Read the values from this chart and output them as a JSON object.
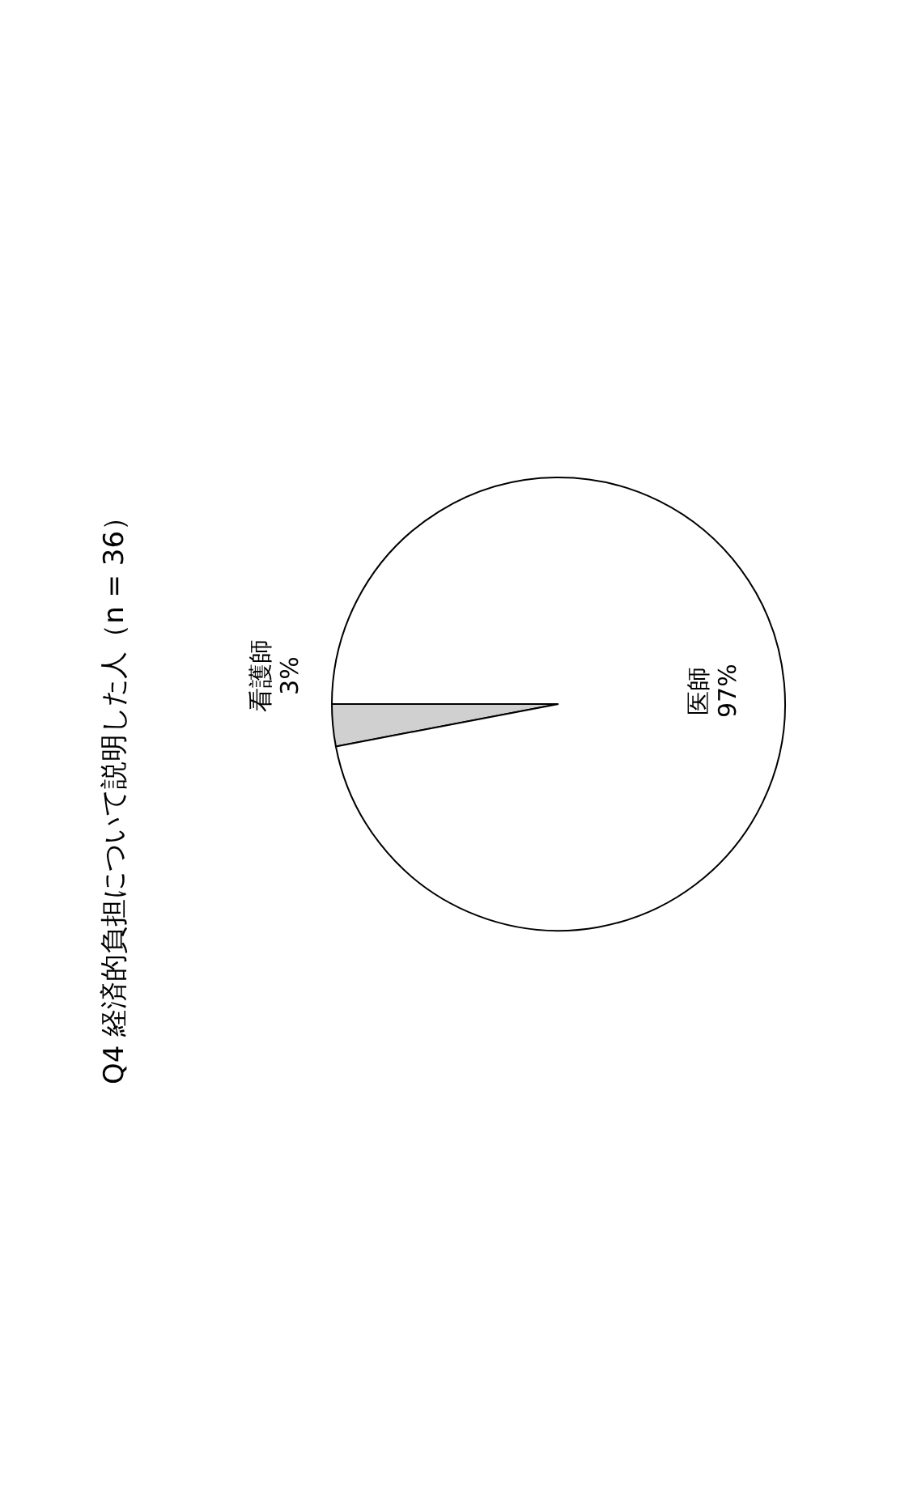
{
  "chart_data": {
    "type": "pie",
    "title": "Q4 経済的負担について説明した人（n = 36）",
    "categories": [
      "看護師",
      "医師"
    ],
    "values": [
      3,
      97
    ],
    "value_labels": [
      "3%",
      "97%"
    ],
    "colors": [
      "#d0d0d0",
      "#ffffff"
    ]
  }
}
